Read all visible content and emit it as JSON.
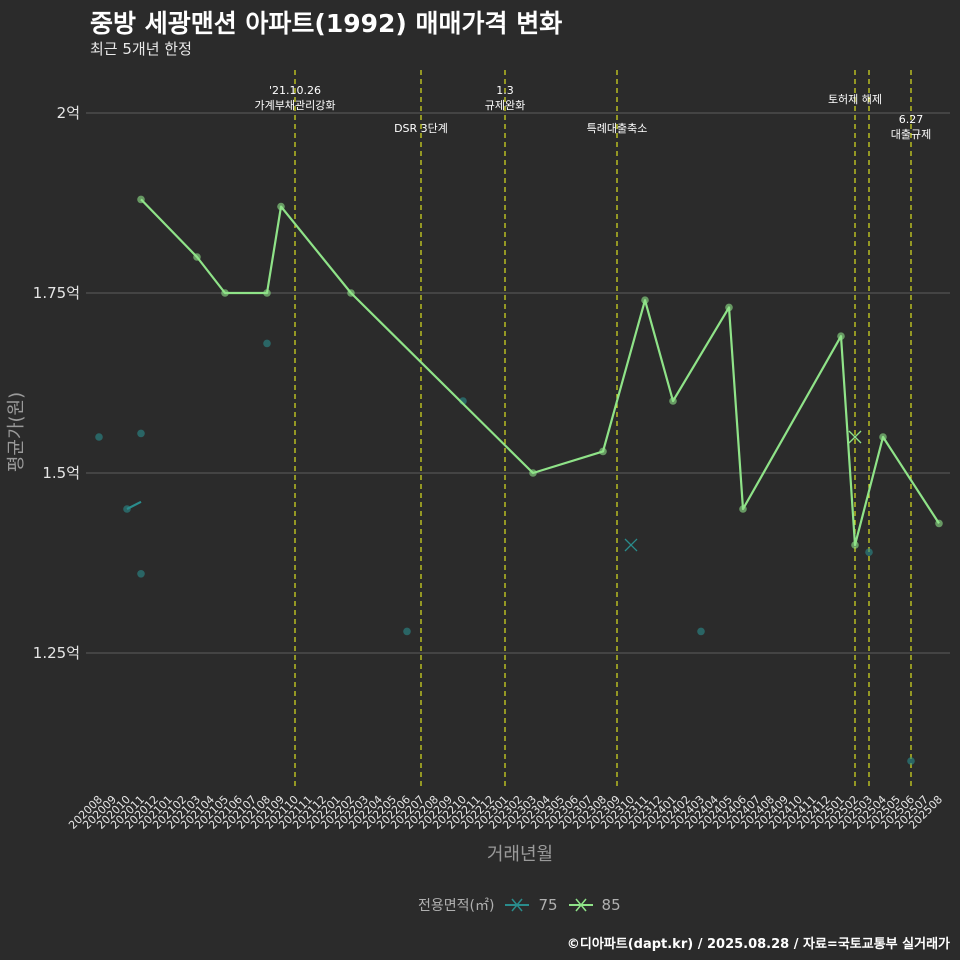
{
  "title": "중방 세광맨션 아파트(1992) 매매가격 변화",
  "subtitle": "최근 5개년 한정",
  "caption": "©디아파트(dapt.kr) / 2025.08.28 / 자료=국토교통부 실거래가",
  "legend": {
    "title": "전용면적(㎡)",
    "entries": [
      {
        "label": "75",
        "color": "#2a8c8c"
      },
      {
        "label": "85",
        "color": "#8fe388"
      }
    ]
  },
  "chart_data": {
    "type": "line",
    "title": "중방 세광맨션 아파트(1992) 매매가격 변화",
    "subtitle": "최근 5개년 한정",
    "xlabel": "거래년월",
    "ylabel": "평균가(원)",
    "ylim": [
      1.07,
      2.05
    ],
    "yticks": [
      1.25,
      1.5,
      1.75,
      2.0
    ],
    "yticklabels": [
      "1.25억",
      "1.5억",
      "1.75억",
      "2억"
    ],
    "grid": "horizontal",
    "legend_position": "bottom",
    "categories": [
      "202008",
      "202009",
      "202010",
      "202011",
      "202012",
      "202101",
      "202102",
      "202103",
      "202104",
      "202105",
      "202106",
      "202107",
      "202108",
      "202109",
      "202110",
      "202111",
      "202112",
      "202201",
      "202202",
      "202203",
      "202204",
      "202205",
      "202206",
      "202207",
      "202208",
      "202209",
      "202210",
      "202211",
      "202212",
      "202301",
      "202302",
      "202303",
      "202304",
      "202305",
      "202306",
      "202307",
      "202308",
      "202309",
      "202310",
      "202311",
      "202312",
      "202401",
      "202402",
      "202403",
      "202404",
      "202405",
      "202406",
      "202407",
      "202408",
      "202409",
      "202410",
      "202411",
      "202412",
      "202501",
      "202502",
      "202503",
      "202504",
      "202505",
      "202506",
      "202507",
      "202508"
    ],
    "series": [
      {
        "name": "75",
        "color": "#2a8c8c",
        "line": [
          [
            "202010",
            1.45
          ],
          [
            "202011",
            1.46
          ]
        ],
        "points": [
          [
            "202008",
            1.55
          ],
          [
            "202010",
            1.45
          ],
          [
            "202011",
            1.555
          ],
          [
            "202011",
            1.36
          ],
          [
            "202108",
            1.68
          ],
          [
            "202206",
            1.28
          ],
          [
            "202210",
            1.6
          ],
          [
            "202403",
            1.28
          ],
          [
            "202503",
            1.39
          ],
          [
            "202506",
            1.1
          ]
        ],
        "cross": [
          [
            "202310",
            1.4
          ]
        ]
      },
      {
        "name": "85",
        "color": "#8fe388",
        "line": [
          [
            "202011",
            1.88
          ],
          [
            "202103",
            1.8
          ],
          [
            "202105",
            1.75
          ],
          [
            "202108",
            1.75
          ],
          [
            "202109",
            1.87
          ],
          [
            "202202",
            1.75
          ],
          [
            "202303",
            1.5
          ],
          [
            "202308",
            1.53
          ],
          [
            "202311",
            1.74
          ],
          [
            "202401",
            1.6
          ],
          [
            "202405",
            1.73
          ],
          [
            "202406",
            1.45
          ],
          [
            "202501",
            1.69
          ],
          [
            "202502",
            1.4
          ],
          [
            "202504",
            1.55
          ],
          [
            "202508",
            1.43
          ]
        ],
        "points": [
          [
            "202011",
            1.88
          ],
          [
            "202103",
            1.8
          ],
          [
            "202105",
            1.75
          ],
          [
            "202108",
            1.75
          ],
          [
            "202109",
            1.87
          ],
          [
            "202202",
            1.75
          ],
          [
            "202303",
            1.5
          ],
          [
            "202308",
            1.53
          ],
          [
            "202311",
            1.74
          ],
          [
            "202401",
            1.6
          ],
          [
            "202405",
            1.73
          ],
          [
            "202406",
            1.45
          ],
          [
            "202501",
            1.69
          ],
          [
            "202502",
            1.4
          ],
          [
            "202504",
            1.55
          ],
          [
            "202508",
            1.43
          ]
        ],
        "cross": [
          [
            "202502",
            1.55
          ]
        ]
      }
    ],
    "annotations": [
      {
        "x": "202110",
        "lines": [
          "'21.10.26",
          "가계부채관리강화"
        ],
        "level": "top"
      },
      {
        "x": "202207",
        "lines": [
          "DSR 3단계"
        ],
        "level": "low"
      },
      {
        "x": "202301",
        "lines": [
          "1.3",
          "규제완화"
        ],
        "level": "top"
      },
      {
        "x": "202309",
        "lines": [
          "특례대출축소"
        ],
        "level": "low"
      },
      {
        "x": "202502",
        "lines": [
          "토허제 해제"
        ],
        "level": "mid"
      },
      {
        "x": "202503",
        "lines": [],
        "level": "none"
      },
      {
        "x": "202506",
        "lines": [
          "6.27",
          "대출규제"
        ],
        "level": "low2"
      }
    ]
  }
}
